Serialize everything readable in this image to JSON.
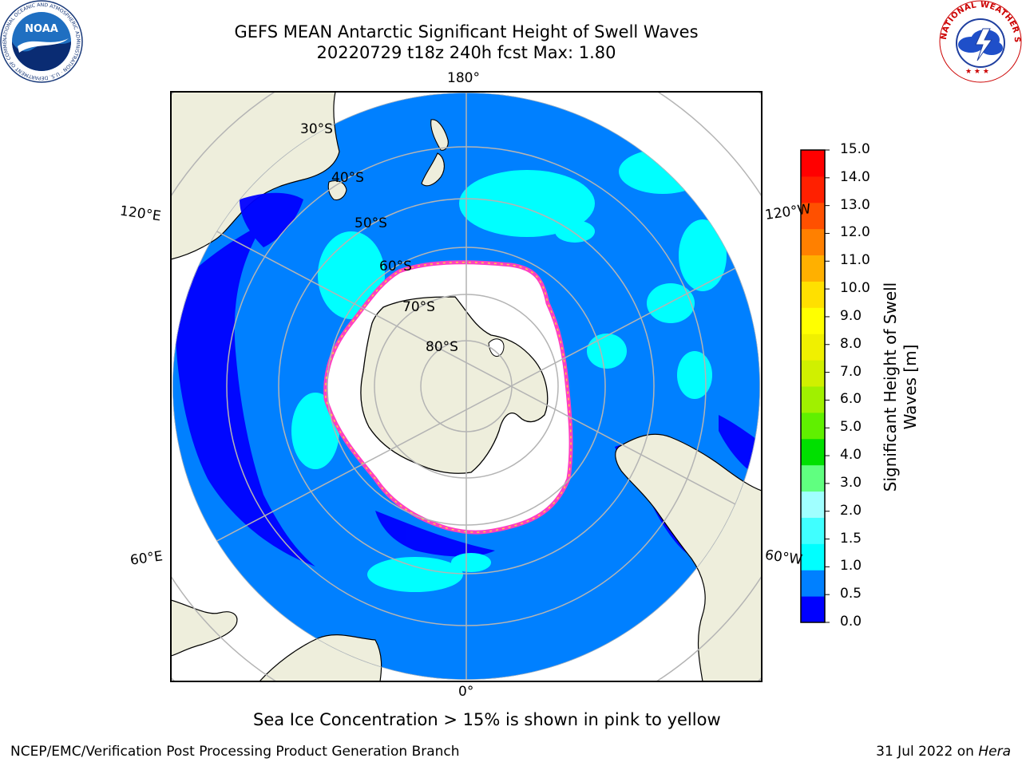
{
  "title_line1": "GEFS MEAN Antarctic Significant Height of Swell Waves",
  "title_line2": "20220729 t18z 240h fcst   Max: 1.80",
  "logos": {
    "noaa": {
      "text": "NOAA",
      "ring_text": "NATIONAL OCEANIC AND ATMOSPHERIC ADMINISTRATION · U.S. DEPARTMENT OF COMMERCE"
    },
    "nws": {
      "ring_text": "NATIONAL WEATHER SERVICE"
    }
  },
  "map": {
    "projection": "south-polar-stereographic",
    "lat_labels": [
      "30°S",
      "40°S",
      "50°S",
      "60°S",
      "70°S",
      "80°S"
    ],
    "lon_labels": {
      "top": "180°",
      "bottom": "0°",
      "upper_left": "120°E",
      "upper_right": "120°W",
      "lower_left": "60°E",
      "lower_right": "60°W"
    },
    "colors": {
      "land": "#eeeedc",
      "ocean_low": "#0080ff",
      "ocean_min": "#0000ff",
      "ocean_mid": "#00ffff",
      "ice": "#ffffff",
      "ice_edge_pink": "#ff40c0",
      "ice_edge_yellow": "#ffd040",
      "grid": "#b4b4b4"
    }
  },
  "colorbar": {
    "label_line1": "Significant Height of Swell",
    "label_line2": "Waves [m]",
    "ticks": [
      "0.0",
      "0.5",
      "1.0",
      "1.5",
      "2.0",
      "3.0",
      "4.0",
      "5.0",
      "6.0",
      "7.0",
      "8.0",
      "9.0",
      "10.0",
      "11.0",
      "12.0",
      "13.0",
      "14.0",
      "15.0"
    ],
    "colors": [
      "#0000ff",
      "#0080ff",
      "#00ffff",
      "#40ffff",
      "#a0ffff",
      "#60ff80",
      "#00e000",
      "#60f000",
      "#a0f000",
      "#d0f000",
      "#f0f000",
      "#ffff00",
      "#ffe000",
      "#ffb000",
      "#ff8000",
      "#ff5000",
      "#ff2000",
      "#ff0000"
    ]
  },
  "caption": "Sea Ice Concentration > 15% is shown in pink to yellow",
  "footer_left": "NCEP/EMC/Verification Post Processing Product Generation Branch",
  "footer_right_prefix": "31 Jul 2022 on ",
  "footer_right_host": "Hera"
}
